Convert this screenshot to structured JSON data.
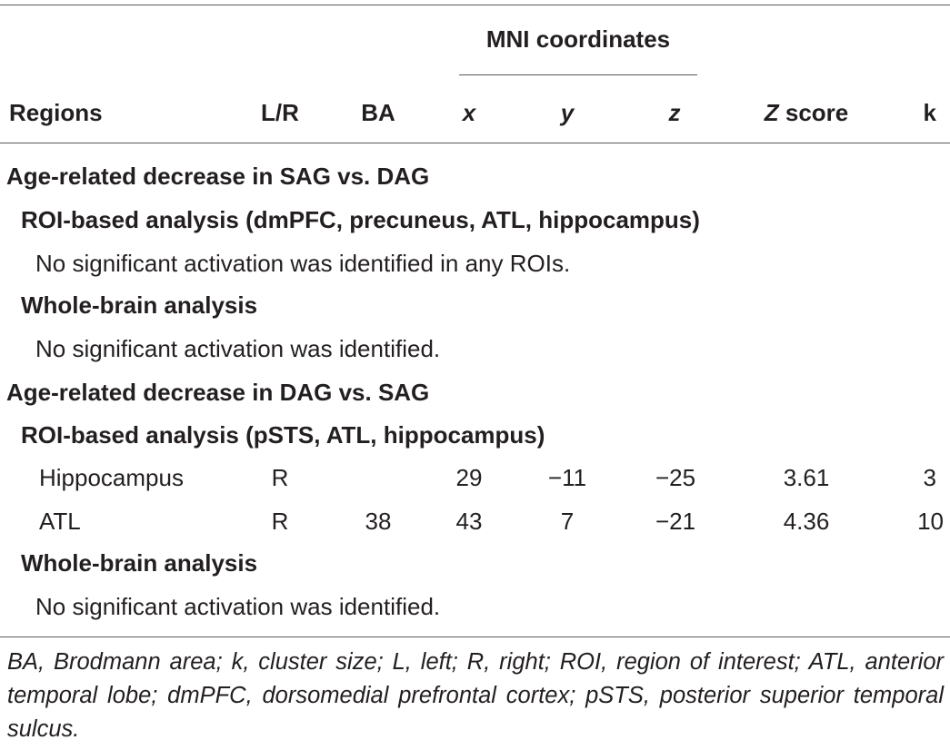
{
  "table": {
    "header": {
      "group_label": "MNI coordinates",
      "regions": "Regions",
      "lr": "L/R",
      "ba": "BA",
      "x": "x",
      "y": "y",
      "z": "z",
      "z_score_italic": "Z",
      "z_score_rest": " score",
      "k": "k"
    },
    "sections": [
      {
        "title": "Age-related decrease in SAG vs. DAG",
        "roi_title": "ROI-based analysis (dmPFC, precuneus, ATL, hippocampus)",
        "roi_note": "No significant activation was identified in any ROIs.",
        "wb_title": "Whole-brain analysis",
        "wb_note": "No significant activation was identified."
      },
      {
        "title": "Age-related decrease in DAG vs. SAG",
        "roi_title": "ROI-based analysis (pSTS, ATL, hippocampus)",
        "rows": [
          {
            "region": "Hippocampus",
            "lr": "R",
            "ba": "",
            "x": "29",
            "y": "−11",
            "z": "−25",
            "zscore": "3.61",
            "k": "3"
          },
          {
            "region": "ATL",
            "lr": "R",
            "ba": "38",
            "x": "43",
            "y": "7",
            "z": "−21",
            "zscore": "4.36",
            "k": "10"
          }
        ],
        "wb_title": "Whole-brain analysis",
        "wb_note": "No significant activation was identified."
      }
    ],
    "footnote": "BA, Brodmann area; k, cluster size; L, left; R, right; ROI, region of interest; ATL, anterior temporal lobe; dmPFC, dorsomedial prefrontal cortex; pSTS, posterior superior temporal sulcus."
  }
}
